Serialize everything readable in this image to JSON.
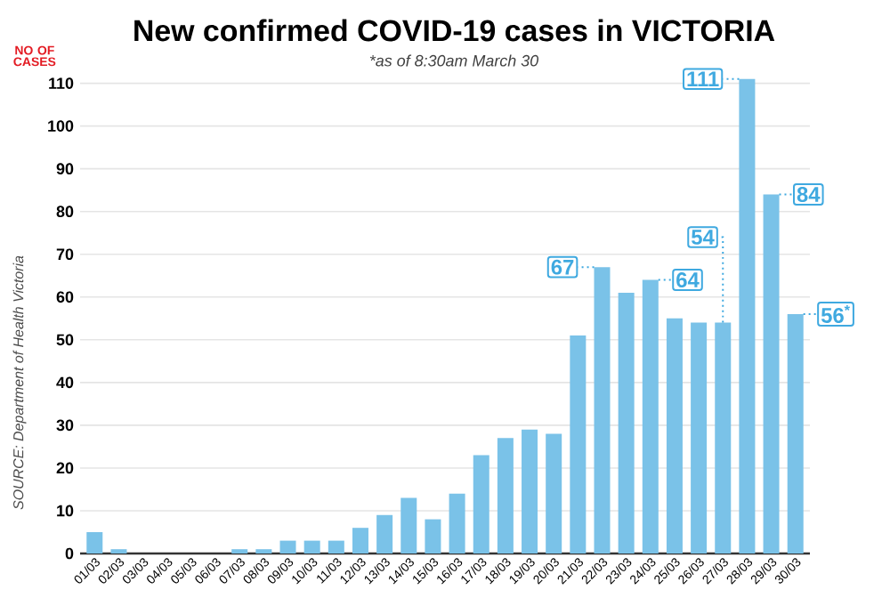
{
  "chart_data": {
    "type": "bar",
    "title": "New confirmed COVID-19 cases in VICTORIA",
    "subtitle": "*as of 8:30am March 30",
    "ylabel": "NO OF CASES",
    "annotations": [
      "SOURCE: Department of Health Victoria"
    ],
    "categories": [
      "01/03",
      "02/03",
      "03/03",
      "04/03",
      "05/03",
      "06/03",
      "07/03",
      "08/03",
      "09/03",
      "10/03",
      "11/03",
      "12/03",
      "13/03",
      "14/03",
      "15/03",
      "16/03",
      "17/03",
      "18/03",
      "19/03",
      "20/03",
      "21/03",
      "22/03",
      "23/03",
      "24/03",
      "25/03",
      "26/03",
      "27/03",
      "28/03",
      "29/03",
      "30/03"
    ],
    "values": [
      5,
      1,
      0,
      0,
      0,
      0,
      1,
      1,
      3,
      3,
      3,
      6,
      9,
      13,
      8,
      14,
      23,
      27,
      29,
      28,
      51,
      67,
      61,
      64,
      55,
      54,
      54,
      111,
      84,
      56
    ],
    "value_labels": [
      null,
      null,
      null,
      null,
      null,
      null,
      null,
      null,
      null,
      null,
      null,
      null,
      null,
      null,
      null,
      null,
      null,
      null,
      null,
      null,
      null,
      "67",
      null,
      "64",
      null,
      null,
      "54",
      "111",
      "84",
      "56$^{*}$"
    ],
    "color": "#7ac2e8",
    "ylim": [
      0,
      112
    ],
    "yticks": [
      0,
      10,
      20,
      30,
      40,
      50,
      60,
      70,
      80,
      90,
      100,
      110
    ],
    "grid": "y"
  }
}
